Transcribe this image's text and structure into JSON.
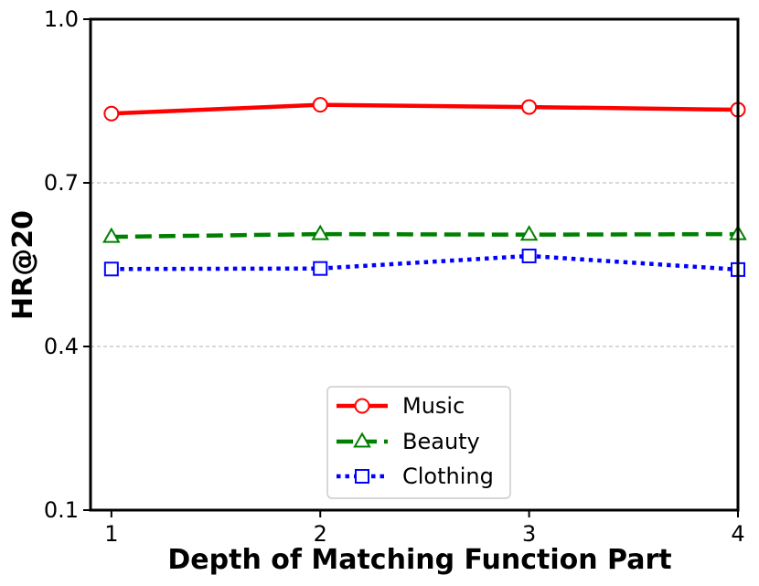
{
  "chart_data": {
    "type": "line",
    "title": "",
    "xlabel": "Depth of Matching Function Part",
    "ylabel": "HR@20",
    "x": [
      1,
      2,
      3,
      4
    ],
    "x_tick_labels": [
      "1",
      "2",
      "3",
      "4"
    ],
    "xlim": [
      0.9,
      4.0
    ],
    "ylim": [
      0.1,
      1.0
    ],
    "y_ticks": [
      0.1,
      0.4,
      0.7,
      1.0
    ],
    "y_tick_labels": [
      "0.1",
      "0.4",
      "0.7",
      "1.0"
    ],
    "grid": "horizontal dashed",
    "legend_position": "lower center",
    "series": [
      {
        "name": "Music",
        "values": [
          0.827,
          0.843,
          0.839,
          0.834
        ],
        "color": "#ff0000",
        "line_style": "solid",
        "marker": "circle"
      },
      {
        "name": "Beauty",
        "values": [
          0.601,
          0.606,
          0.605,
          0.606
        ],
        "color": "#008000",
        "line_style": "dashed",
        "marker": "triangle"
      },
      {
        "name": "Clothing",
        "values": [
          0.542,
          0.543,
          0.566,
          0.541
        ],
        "color": "#0000ff",
        "line_style": "dotted",
        "marker": "square"
      }
    ]
  }
}
